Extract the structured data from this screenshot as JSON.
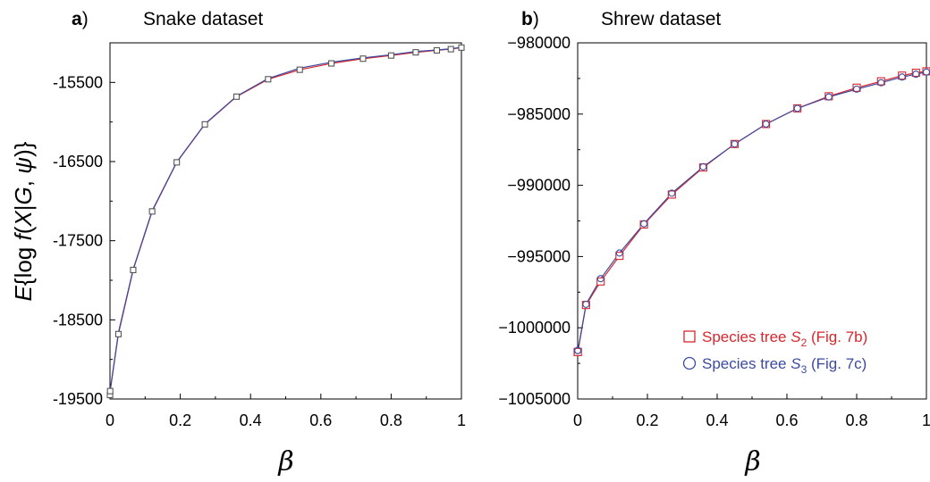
{
  "ylabel_parts": {
    "e": "E",
    "open": "{log ",
    "f": "f",
    "paren": "(",
    "x": "X",
    "bar": "|",
    "g": "G",
    "comma": ", ",
    "psi": "ψ",
    "close": ")}"
  },
  "chart_data": [
    {
      "type": "line",
      "panel_letter": "a",
      "panel_paren": ")",
      "title": "Snake dataset",
      "xlabel": "β",
      "xlim": [
        0,
        1
      ],
      "ylim": [
        -19500,
        -15000
      ],
      "xticks": [
        "0",
        "0.2",
        "0.4",
        "0.6",
        "0.8",
        "1"
      ],
      "yticks": [
        "-15500",
        "-16500",
        "-17500",
        "-18500",
        "-19500"
      ],
      "ytick_values": [
        -15500,
        -16500,
        -17500,
        -18500,
        -19500
      ],
      "grid": false,
      "series": [
        {
          "color": "#d7262e",
          "marker": "square",
          "x": [
            0,
            0.0005,
            0.024,
            0.066,
            0.12,
            0.19,
            0.27,
            0.36,
            0.45,
            0.54,
            0.63,
            0.72,
            0.8,
            0.87,
            0.93,
            0.97,
            1.0
          ],
          "y": [
            -19450,
            -19400,
            -18680,
            -17870,
            -17130,
            -16510,
            -16030,
            -15680,
            -15460,
            -15340,
            -15260,
            -15200,
            -15160,
            -15120,
            -15095,
            -15080,
            -15060
          ]
        },
        {
          "color": "#3b4ba0",
          "marker": "circle",
          "x": [
            0,
            0.0005,
            0.024,
            0.066,
            0.12,
            0.19,
            0.27,
            0.36,
            0.45,
            0.54,
            0.63,
            0.72,
            0.8,
            0.87,
            0.93,
            0.97,
            1.0
          ],
          "y": [
            -19440,
            -19390,
            -18660,
            -17860,
            -17120,
            -16505,
            -16025,
            -15675,
            -15450,
            -15320,
            -15245,
            -15190,
            -15150,
            -15110,
            -15090,
            -15075,
            -15055
          ]
        }
      ]
    },
    {
      "type": "line",
      "panel_letter": "b",
      "panel_paren": ")",
      "title": "Shrew dataset",
      "xlabel": "β",
      "xlim": [
        0,
        1
      ],
      "ylim": [
        -1005000,
        -980000
      ],
      "xticks": [
        "0",
        "0.2",
        "0.4",
        "0.6",
        "0.8",
        "1"
      ],
      "yticks": [
        "−980000",
        "−985000",
        "−990000",
        "−995000",
        "−1000000",
        "−1005000"
      ],
      "ytick_values": [
        -980000,
        -985000,
        -990000,
        -995000,
        -1000000,
        -1005000
      ],
      "grid": false,
      "legend_position": "bottom-right",
      "series": [
        {
          "name_prefix": "Species tree ",
          "name_var": "S",
          "name_sub": "2",
          "name_suffix": " (Fig. 7b)",
          "color": "#d7262e",
          "marker": "square",
          "x": [
            0,
            0.0005,
            0.024,
            0.066,
            0.12,
            0.19,
            0.27,
            0.36,
            0.45,
            0.54,
            0.63,
            0.72,
            0.8,
            0.87,
            0.93,
            0.97,
            1.0
          ],
          "y": [
            -1001700,
            -1001700,
            -998400,
            -996750,
            -994950,
            -992750,
            -990650,
            -988750,
            -987100,
            -985700,
            -984600,
            -983750,
            -983150,
            -982700,
            -982300,
            -982100,
            -982000
          ]
        },
        {
          "name_prefix": "Species tree ",
          "name_var": "S",
          "name_sub": "3",
          "name_suffix": " (Fig. 7c)",
          "color": "#3b4ba0",
          "marker": "circle",
          "x": [
            0,
            0.0005,
            0.024,
            0.066,
            0.12,
            0.19,
            0.27,
            0.36,
            0.45,
            0.54,
            0.63,
            0.72,
            0.8,
            0.87,
            0.93,
            0.97,
            1.0
          ],
          "y": [
            -1001600,
            -1001600,
            -998350,
            -996550,
            -994750,
            -992700,
            -990550,
            -988700,
            -987100,
            -985700,
            -984600,
            -983800,
            -983250,
            -982800,
            -982400,
            -982200,
            -982050
          ]
        }
      ]
    }
  ]
}
